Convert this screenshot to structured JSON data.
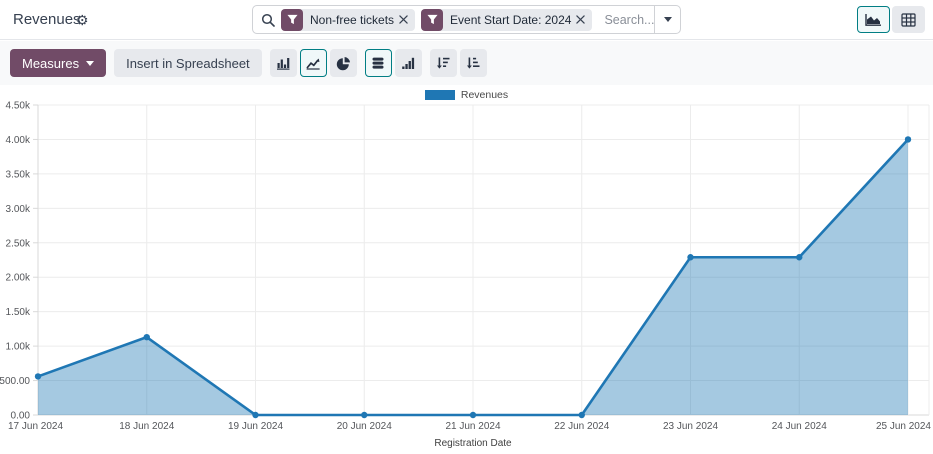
{
  "header": {
    "title": "Revenues",
    "gear_icon": "gear-icon",
    "search": {
      "placeholder": "Search...",
      "facets": [
        {
          "icon": "filter-funnel-icon",
          "label": "Non-free tickets"
        },
        {
          "icon": "filter-funnel-icon",
          "label": "Event Start Date: 2024"
        }
      ]
    },
    "view_switcher": [
      {
        "name": "graph-view",
        "icon": "area-chart-icon",
        "active": true
      },
      {
        "name": "pivot-view",
        "icon": "pivot-table-icon",
        "active": false
      }
    ]
  },
  "toolbar": {
    "measures_label": "Measures",
    "insert_label": "Insert in Spreadsheet",
    "icons": [
      {
        "name": "bar-chart-icon",
        "active": false
      },
      {
        "name": "line-chart-icon",
        "active": true
      },
      {
        "name": "pie-chart-icon",
        "active": false
      },
      {
        "name": "stacked-icon",
        "active": true
      },
      {
        "name": "cumulative-icon",
        "active": false
      },
      {
        "name": "sort-descending-icon",
        "active": false
      },
      {
        "name": "sort-ascending-icon",
        "active": false
      }
    ]
  },
  "colors": {
    "accent_purple": "#714b67",
    "active_teal": "#017e84",
    "line_blue": "#1f77b4",
    "fill_blue": "rgba(31,119,180,0.4)",
    "grid": "#ececec",
    "axis": "#d9d9d9",
    "tick_text": "#54565a"
  },
  "chart_data": {
    "type": "area",
    "legend": [
      "Revenues"
    ],
    "legend_position": "top",
    "x": [
      "17 Jun 2024",
      "18 Jun 2024",
      "19 Jun 2024",
      "20 Jun 2024",
      "21 Jun 2024",
      "22 Jun 2024",
      "23 Jun 2024",
      "24 Jun 2024",
      "25 Jun 2024"
    ],
    "values": [
      560,
      1130,
      0,
      0,
      0,
      0,
      2290,
      2290,
      4000
    ],
    "xlabel": "Registration Date",
    "ylabel": "",
    "ylim": [
      0,
      4500
    ],
    "ytick_step": 500,
    "ytick_labels": [
      "0.00",
      "500.00",
      "1.00k",
      "1.50k",
      "2.00k",
      "2.50k",
      "3.00k",
      "3.50k",
      "4.00k",
      "4.50k"
    ],
    "grid": true
  }
}
